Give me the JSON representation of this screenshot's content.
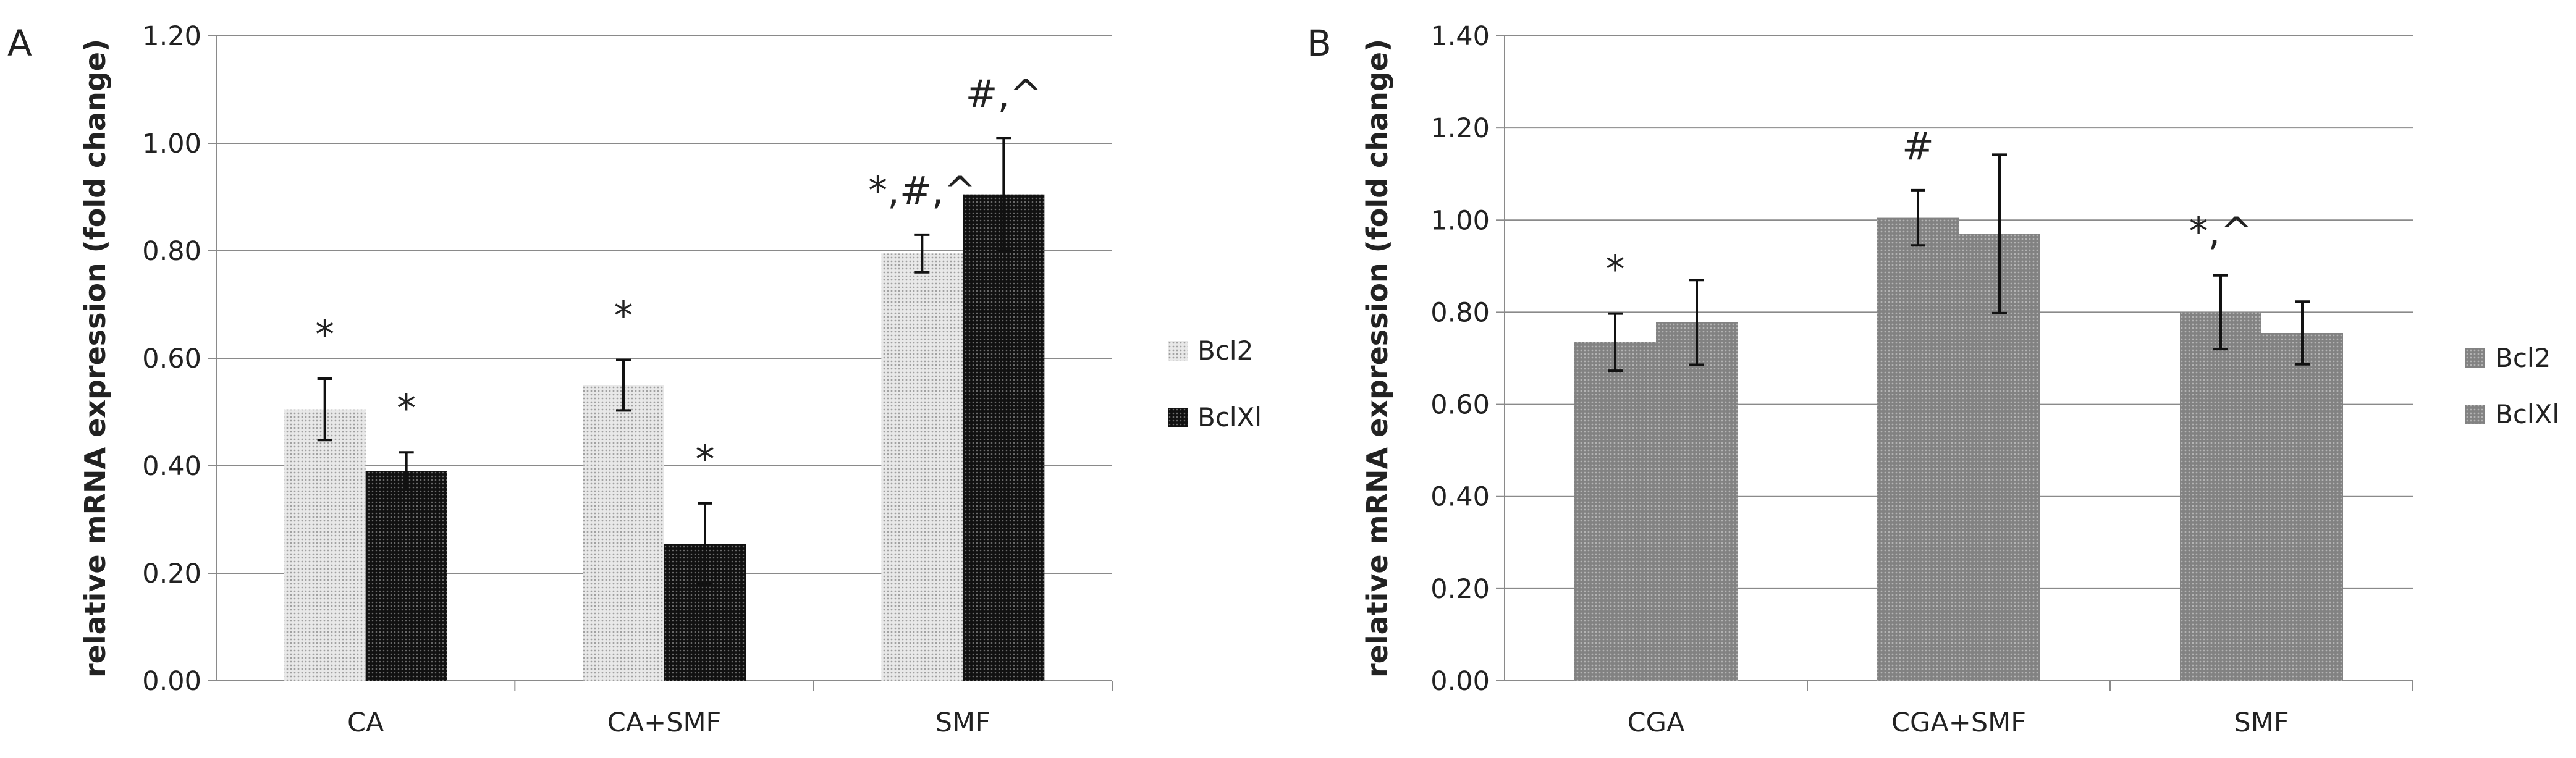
{
  "chart_data": [
    {
      "type": "bar",
      "panel_label": "A",
      "ylabel": "relative mRNA expression (fold change)",
      "ylim": [
        0,
        1.2
      ],
      "yticks": [
        "0.00",
        "0.20",
        "0.40",
        "0.60",
        "0.80",
        "1.00",
        "1.20"
      ],
      "categories": [
        "CA",
        "CA+SMF",
        "SMF"
      ],
      "grid": "horizontal",
      "legend_position": "right",
      "series": [
        {
          "name": "Bcl2",
          "values": [
            0.505,
            0.55,
            0.795
          ],
          "errors": [
            0.057,
            0.047,
            0.035
          ],
          "annotations": [
            "*",
            "*",
            "*,#,^"
          ],
          "color": "#d4d4d4",
          "pattern": "light-dots"
        },
        {
          "name": "BclXl",
          "values": [
            0.39,
            0.255,
            0.905
          ],
          "errors": [
            0.035,
            0.075,
            0.105
          ],
          "annotations": [
            "*",
            "*",
            "#,^"
          ],
          "color": "#1e1e1e",
          "pattern": "dark-dots"
        }
      ]
    },
    {
      "type": "bar",
      "panel_label": "B",
      "ylabel": "relative mRNA expression (fold change)",
      "ylim": [
        0,
        1.4
      ],
      "yticks": [
        "0.00",
        "0.20",
        "0.40",
        "0.60",
        "0.80",
        "1.00",
        "1.20",
        "1.40"
      ],
      "categories": [
        "CGA",
        "CGA+SMF",
        "SMF"
      ],
      "grid": "horizontal",
      "legend_position": "right",
      "series": [
        {
          "name": "Bcl2",
          "values": [
            0.735,
            1.005,
            0.8
          ],
          "errors": [
            0.062,
            0.06,
            0.08
          ],
          "annotations": [
            "*",
            "#",
            "*,^"
          ],
          "color": "#8c8c8c",
          "pattern": "grey-dots"
        },
        {
          "name": "BclXl",
          "values": [
            0.778,
            0.97,
            0.755
          ],
          "errors": [
            0.092,
            0.172,
            0.068
          ],
          "annotations": [
            "",
            "",
            ""
          ],
          "color": "#8c8c8c",
          "pattern": "grey-dots"
        }
      ]
    }
  ]
}
